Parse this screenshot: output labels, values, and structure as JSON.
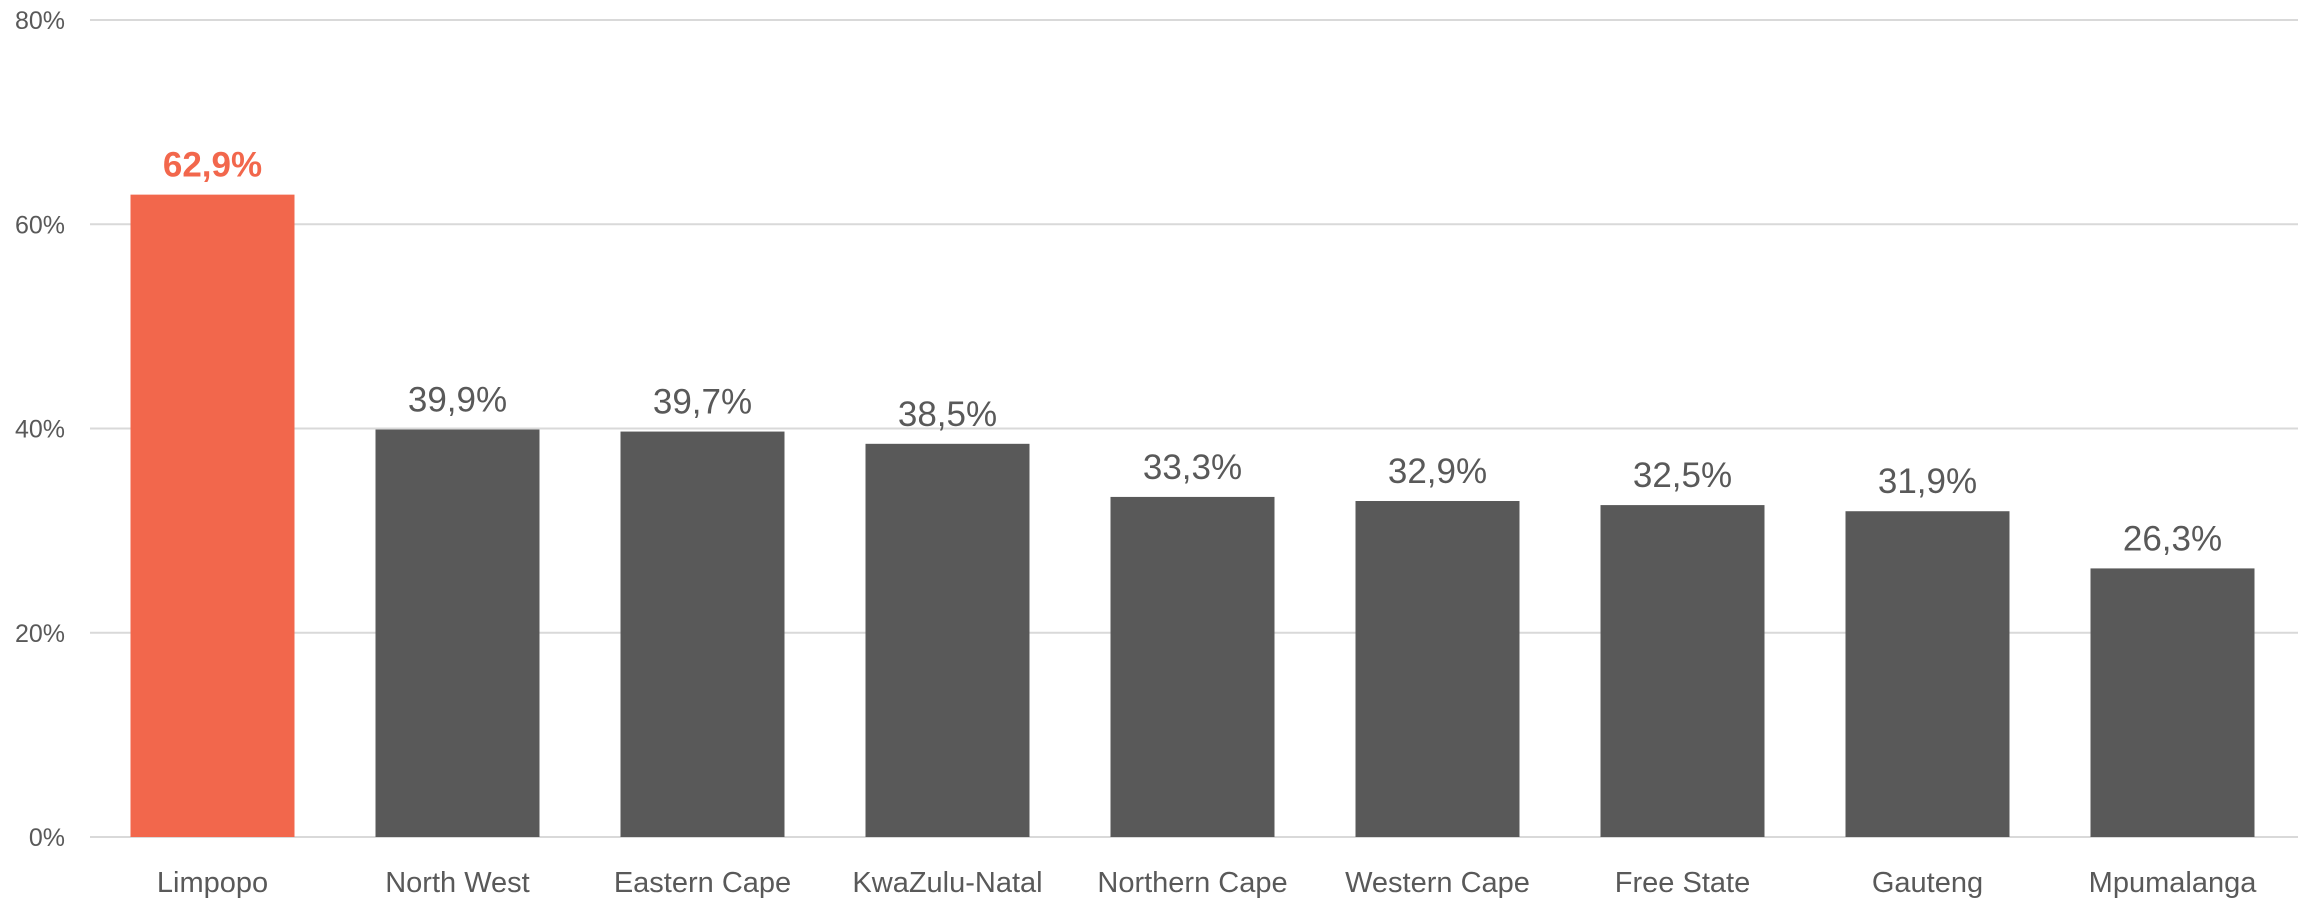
{
  "chart_data": {
    "type": "bar",
    "title": "",
    "xlabel": "",
    "ylabel": "",
    "categories": [
      "Limpopo",
      "North West",
      "Eastern Cape",
      "KwaZulu-Natal",
      "Northern Cape",
      "Western Cape",
      "Free State",
      "Gauteng",
      "Mpumalanga"
    ],
    "values": [
      62.9,
      39.9,
      39.7,
      38.5,
      33.3,
      32.9,
      32.5,
      31.9,
      26.3
    ],
    "data_labels": [
      "62,9%",
      "39,9%",
      "39,7%",
      "38,5%",
      "33,3%",
      "32,9%",
      "32,5%",
      "31,9%",
      "26,3%"
    ],
    "ylim": [
      0,
      80
    ],
    "yticks": [
      0,
      20,
      40,
      60,
      80
    ],
    "ytick_labels": [
      "0%",
      "20%",
      "40%",
      "60%",
      "80%"
    ],
    "grid": true,
    "legend": "none",
    "highlight_index": 0,
    "colors": {
      "highlight": "#f2674c",
      "default": "#595959",
      "grid": "#d9d9d9",
      "text": "#595959"
    }
  }
}
